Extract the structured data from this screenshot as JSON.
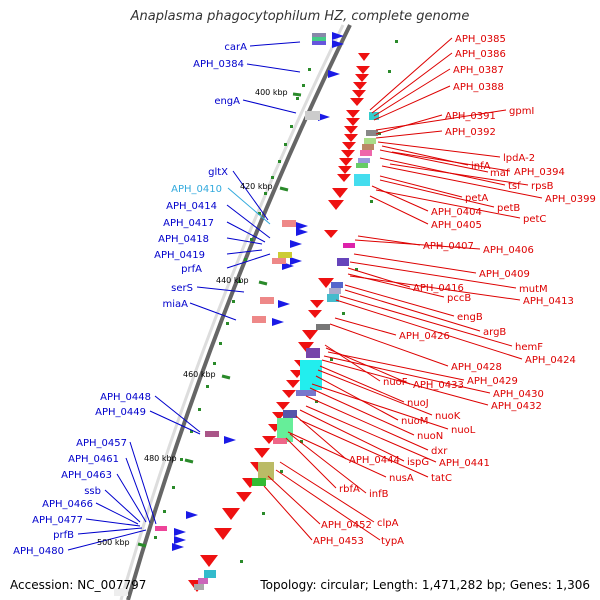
{
  "title": "Anaplasma phagocytophilum HZ, complete genome",
  "footer": {
    "accession": "Accession: NC_007797",
    "summary": "Topology: circular; Length: 1,471,282 bp; Genes: 1,306"
  },
  "colors": {
    "left_label": "#0000cc",
    "left_highlight": "#33aadd",
    "right_label": "#dd0000",
    "backbone": "#666666",
    "tick_mark": "#2a8a2a"
  },
  "ticks": [
    "400 kbp",
    "420 kbp",
    "440 kbp",
    "460 kbp",
    "480 kbp",
    "500 kbp"
  ],
  "left_labels": [
    "carA",
    "APH_0384",
    "engA",
    "gltX",
    "APH_0410",
    "APH_0414",
    "APH_0417",
    "APH_0418",
    "APH_0419",
    "prfA",
    "serS",
    "miaA",
    "APH_0448",
    "APH_0449",
    "APH_0457",
    "APH_0461",
    "APH_0463",
    "ssb",
    "APH_0466",
    "APH_0477",
    "prfB",
    "APH_0480"
  ],
  "right_labels": [
    "APH_0385",
    "APH_0386",
    "APH_0387",
    "APH_0388",
    "gpmI",
    "APH_0391",
    "APH_0392",
    "lpdA-2",
    "infA",
    "maf",
    "APH_0394",
    "tsf",
    "rpsB",
    "APH_0399",
    "petA",
    "petB",
    "APH_0404",
    "petC",
    "APH_0405",
    "APH_0407",
    "APH_0406",
    "APH_0409",
    "mutM",
    "APH_0416",
    "pccB",
    "APH_0413",
    "engB",
    "argB",
    "APH_0426",
    "hemF",
    "APH_0424",
    "APH_0428",
    "nuoF",
    "APH_0433",
    "APH_0429",
    "APH_0430",
    "APH_0432",
    "nuoJ",
    "nuoK",
    "nuoM",
    "nuoL",
    "nuoN",
    "dxr",
    "APH_0444",
    "ispG",
    "APH_0441",
    "nusA",
    "tatC",
    "rbfA",
    "infB",
    "APH_0452",
    "clpA",
    "APH_0453",
    "typA"
  ]
}
